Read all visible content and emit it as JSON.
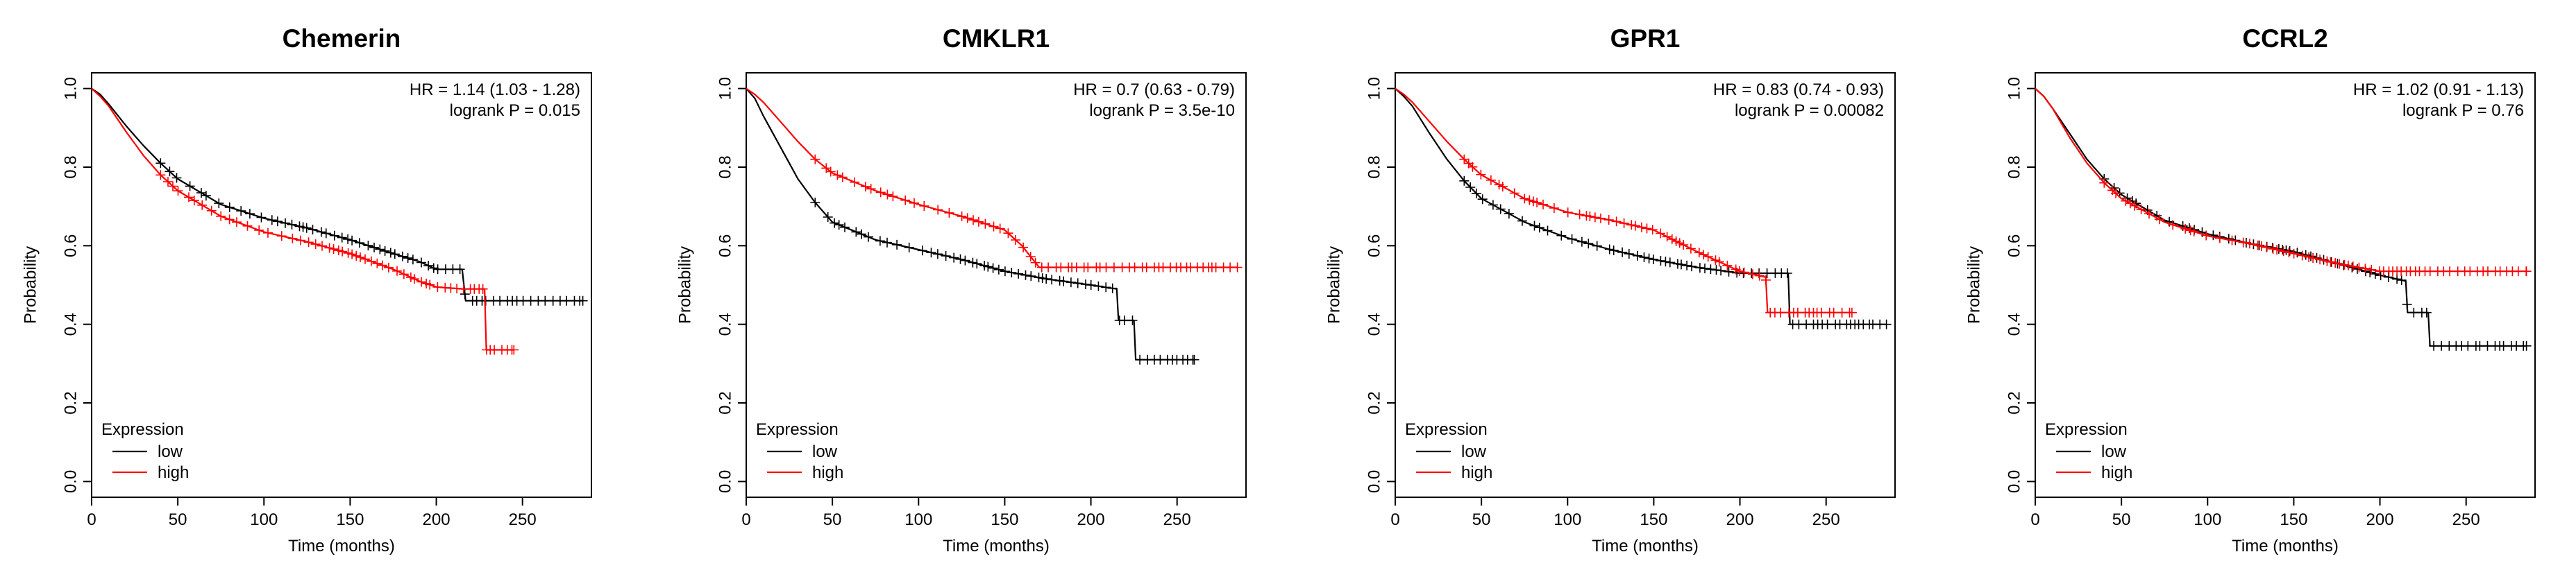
{
  "colors": {
    "low": "#000000",
    "high": "#ff0000",
    "axis": "#000000",
    "censor_low": "#333333"
  },
  "chart_data": [
    {
      "type": "line",
      "title": "Chemerin",
      "xlabel": "Time (months)",
      "ylabel": "Probability",
      "xlim": [
        0,
        290
      ],
      "ylim": [
        0,
        1
      ],
      "x_ticks": [
        "0",
        "50",
        "100",
        "150",
        "200",
        "250"
      ],
      "y_ticks": [
        "0.0",
        "0.2",
        "0.4",
        "0.6",
        "0.8",
        "1.0"
      ],
      "hr_text": "HR = 1.14 (1.03 - 1.28)",
      "p_text": "logrank P = 0.015",
      "legend_title": "Expression",
      "legend_location": "bottom-left",
      "series": [
        {
          "name": "low",
          "color": "#000000",
          "x": [
            0,
            5,
            10,
            20,
            30,
            40,
            50,
            75,
            100,
            125,
            150,
            175,
            190,
            200,
            215,
            217,
            285
          ],
          "y": [
            1.0,
            0.985,
            0.96,
            0.905,
            0.855,
            0.81,
            0.77,
            0.705,
            0.67,
            0.645,
            0.615,
            0.58,
            0.56,
            0.54,
            0.54,
            0.46,
            0.46
          ]
        },
        {
          "name": "high",
          "color": "#ff0000",
          "x": [
            0,
            5,
            10,
            20,
            30,
            40,
            50,
            75,
            100,
            125,
            150,
            175,
            190,
            200,
            215,
            228,
            229,
            245
          ],
          "y": [
            1.0,
            0.98,
            0.955,
            0.89,
            0.83,
            0.78,
            0.74,
            0.675,
            0.635,
            0.61,
            0.58,
            0.54,
            0.51,
            0.495,
            0.49,
            0.49,
            0.335,
            0.335
          ]
        }
      ]
    },
    {
      "type": "line",
      "title": "CMKLR1",
      "xlabel": "Time (months)",
      "ylabel": "Probability",
      "xlim": [
        0,
        290
      ],
      "ylim": [
        0,
        1
      ],
      "x_ticks": [
        "0",
        "50",
        "100",
        "150",
        "200",
        "250"
      ],
      "y_ticks": [
        "0.0",
        "0.2",
        "0.4",
        "0.6",
        "0.8",
        "1.0"
      ],
      "hr_text": "HR = 0.7 (0.63 - 0.79)",
      "p_text": "logrank P = 3.5e-10",
      "legend_title": "Expression",
      "legend_location": "bottom-left",
      "series": [
        {
          "name": "low",
          "color": "#000000",
          "x": [
            0,
            5,
            10,
            20,
            30,
            40,
            50,
            75,
            100,
            125,
            150,
            175,
            200,
            215,
            216,
            225,
            226,
            260
          ],
          "y": [
            1.0,
            0.975,
            0.93,
            0.85,
            0.77,
            0.71,
            0.66,
            0.615,
            0.59,
            0.565,
            0.535,
            0.515,
            0.5,
            0.49,
            0.41,
            0.41,
            0.31,
            0.31
          ]
        },
        {
          "name": "high",
          "color": "#ff0000",
          "x": [
            0,
            5,
            10,
            20,
            30,
            40,
            50,
            75,
            100,
            125,
            150,
            160,
            170,
            200,
            285
          ],
          "y": [
            1.0,
            0.985,
            0.965,
            0.915,
            0.865,
            0.82,
            0.785,
            0.74,
            0.705,
            0.675,
            0.64,
            0.6,
            0.545,
            0.545,
            0.545
          ]
        }
      ]
    },
    {
      "type": "line",
      "title": "GPR1",
      "xlabel": "Time (months)",
      "ylabel": "Probability",
      "xlim": [
        0,
        290
      ],
      "ylim": [
        0,
        1
      ],
      "x_ticks": [
        "0",
        "50",
        "100",
        "150",
        "200",
        "250"
      ],
      "y_ticks": [
        "0.0",
        "0.2",
        "0.4",
        "0.6",
        "0.8",
        "1.0"
      ],
      "hr_text": "HR = 0.83 (0.74 - 0.93)",
      "p_text": "logrank P = 0.00082",
      "legend_title": "Expression",
      "legend_location": "bottom-left",
      "series": [
        {
          "name": "low",
          "color": "#000000",
          "x": [
            0,
            5,
            10,
            20,
            30,
            40,
            50,
            75,
            100,
            125,
            150,
            175,
            200,
            228,
            229,
            285
          ],
          "y": [
            1.0,
            0.98,
            0.955,
            0.885,
            0.82,
            0.765,
            0.72,
            0.66,
            0.62,
            0.59,
            0.565,
            0.545,
            0.53,
            0.53,
            0.4,
            0.4
          ]
        },
        {
          "name": "high",
          "color": "#ff0000",
          "x": [
            0,
            5,
            10,
            20,
            30,
            40,
            50,
            75,
            100,
            125,
            150,
            175,
            200,
            215,
            216,
            265
          ],
          "y": [
            1.0,
            0.985,
            0.965,
            0.915,
            0.865,
            0.82,
            0.78,
            0.72,
            0.685,
            0.665,
            0.64,
            0.585,
            0.535,
            0.52,
            0.43,
            0.43
          ]
        }
      ]
    },
    {
      "type": "line",
      "title": "CCRL2",
      "xlabel": "Time (months)",
      "ylabel": "Probability",
      "xlim": [
        0,
        290
      ],
      "ylim": [
        0,
        1
      ],
      "x_ticks": [
        "0",
        "50",
        "100",
        "150",
        "200",
        "250"
      ],
      "y_ticks": [
        "0.0",
        "0.2",
        "0.4",
        "0.6",
        "0.8",
        "1.0"
      ],
      "hr_text": "HR = 1.02 (0.91 - 1.13)",
      "p_text": "logrank P = 0.76",
      "legend_title": "Expression",
      "legend_location": "bottom-left",
      "series": [
        {
          "name": "low",
          "color": "#000000",
          "x": [
            0,
            5,
            10,
            20,
            30,
            40,
            50,
            75,
            100,
            125,
            150,
            175,
            200,
            215,
            216,
            228,
            229,
            285
          ],
          "y": [
            1.0,
            0.98,
            0.95,
            0.885,
            0.82,
            0.77,
            0.73,
            0.665,
            0.63,
            0.605,
            0.585,
            0.555,
            0.525,
            0.51,
            0.43,
            0.43,
            0.345,
            0.345
          ]
        },
        {
          "name": "high",
          "color": "#ff0000",
          "x": [
            0,
            5,
            10,
            20,
            30,
            40,
            50,
            75,
            100,
            125,
            150,
            175,
            200,
            285
          ],
          "y": [
            1.0,
            0.98,
            0.95,
            0.875,
            0.81,
            0.76,
            0.72,
            0.66,
            0.625,
            0.605,
            0.58,
            0.555,
            0.535,
            0.535
          ]
        }
      ]
    }
  ]
}
